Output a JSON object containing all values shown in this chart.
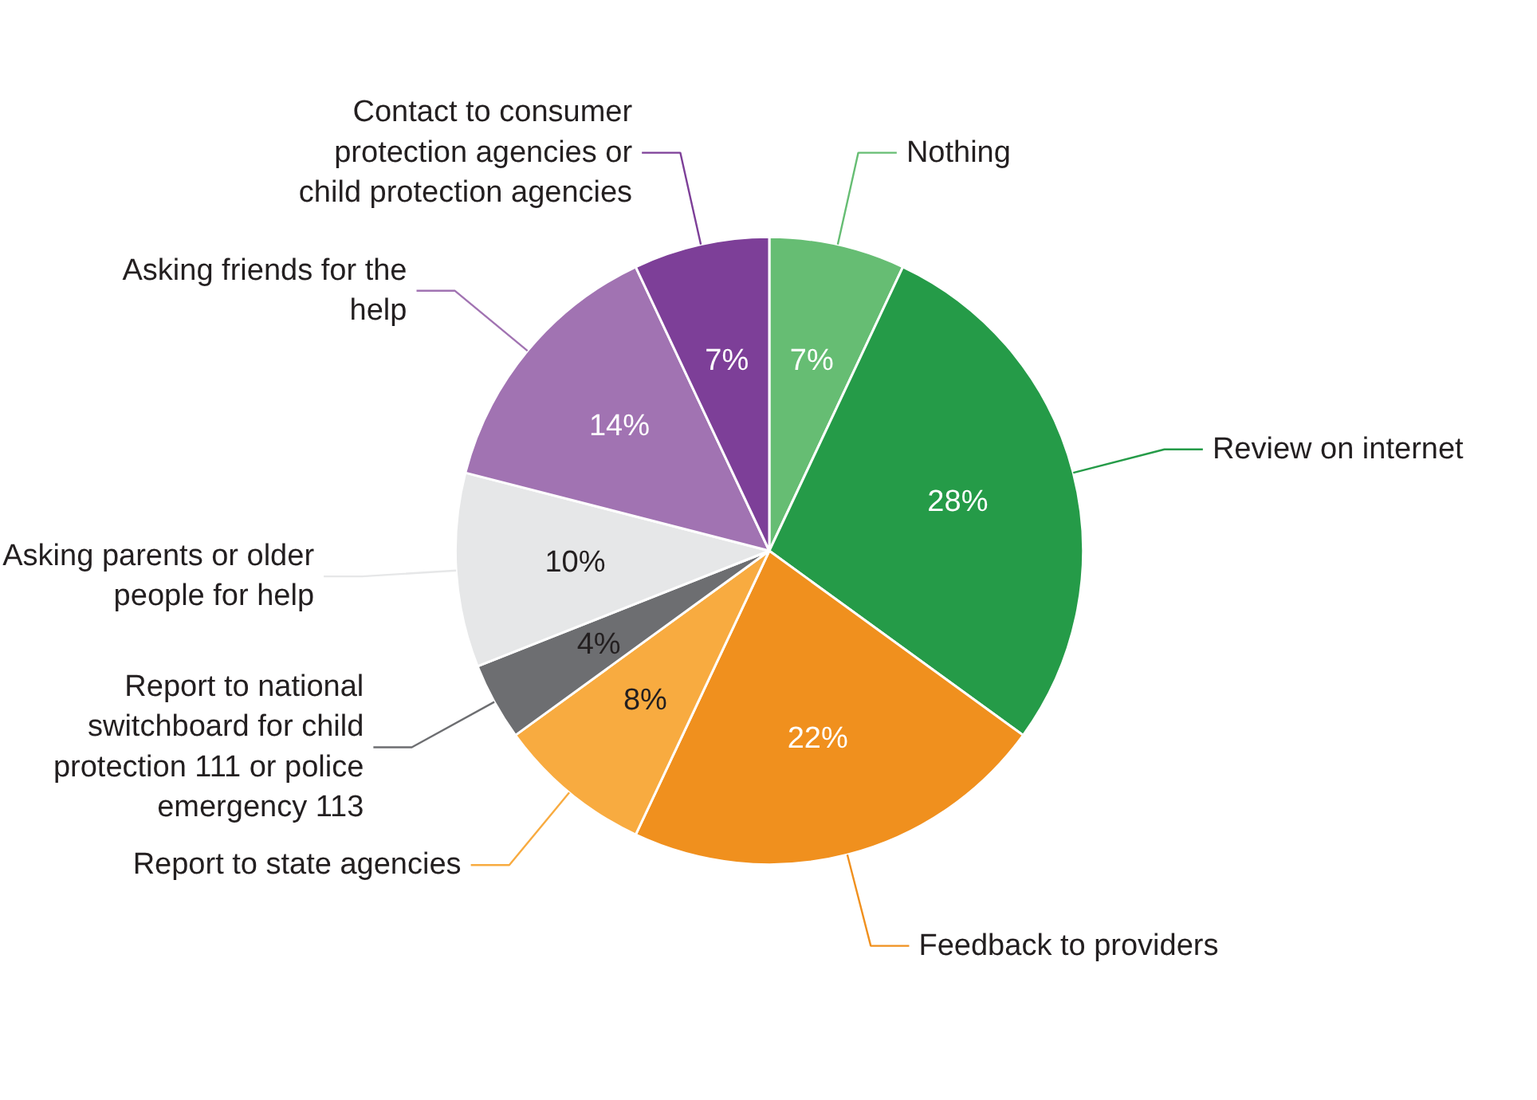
{
  "chart_data": {
    "type": "pie",
    "categories": [
      "Nothing",
      "Review on internet",
      "Feedback to providers",
      "Report to state agencies",
      "Report to national switchboard for child protection 111 or police emergency 113",
      "Asking parents or older people for help",
      "Asking friends for the help",
      "Contact to consumer protection agencies or child protection agencies"
    ],
    "values": [
      7,
      28,
      22,
      8,
      4,
      10,
      14,
      7
    ],
    "colors": [
      "#66bd73",
      "#259b48",
      "#f0901e",
      "#f8ab40",
      "#6d6e71",
      "#e6e7e8",
      "#a173b2",
      "#7d3f98"
    ],
    "value_labels": [
      "7%",
      "28%",
      "22%",
      "8%",
      "4%",
      "10%",
      "14%",
      "7%"
    ]
  }
}
